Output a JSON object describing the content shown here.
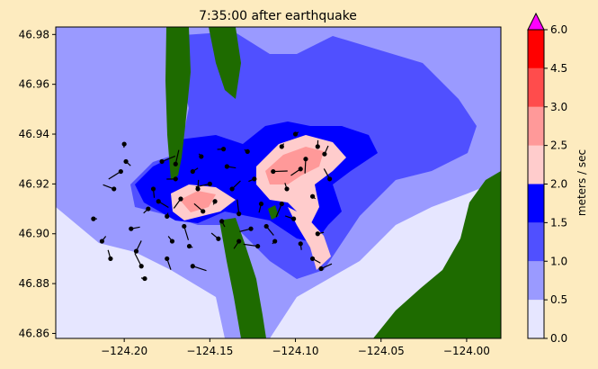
{
  "chart_data": {
    "type": "heatmap",
    "title": "7:35:00 after earthquake",
    "xlim": [
      -124.24,
      -123.98
    ],
    "ylim": [
      46.858,
      46.983
    ],
    "x_ticks": [
      -124.2,
      -124.15,
      -124.1,
      -124.05,
      -124.0
    ],
    "x_tick_labels": [
      "−124.20",
      "−124.15",
      "−124.10",
      "−124.05",
      "−124.00"
    ],
    "y_ticks": [
      46.86,
      46.88,
      46.9,
      46.92,
      46.94,
      46.96,
      46.98
    ],
    "y_tick_labels": [
      "46.86",
      "46.88",
      "46.90",
      "46.92",
      "46.94",
      "46.96",
      "46.98"
    ],
    "colorbar": {
      "label": "meters / sec",
      "levels": [
        0.0,
        0.5,
        1.0,
        1.5,
        2.0,
        2.5,
        3.0,
        4.5,
        6.0
      ],
      "tick_labels": [
        "0.0",
        "0.5",
        "1.0",
        "1.5",
        "2.0",
        "2.5",
        "3.0",
        "4.5",
        "6.0"
      ],
      "colors": [
        "#e6e6ff",
        "#9a9aff",
        "#5050ff",
        "#0000ff",
        "#ffcccc",
        "#ff9999",
        "#ff4c4c",
        "#ff0000"
      ],
      "extend_color": "#ff00ff"
    },
    "land_color": "#1e6b00",
    "grid": false
  }
}
